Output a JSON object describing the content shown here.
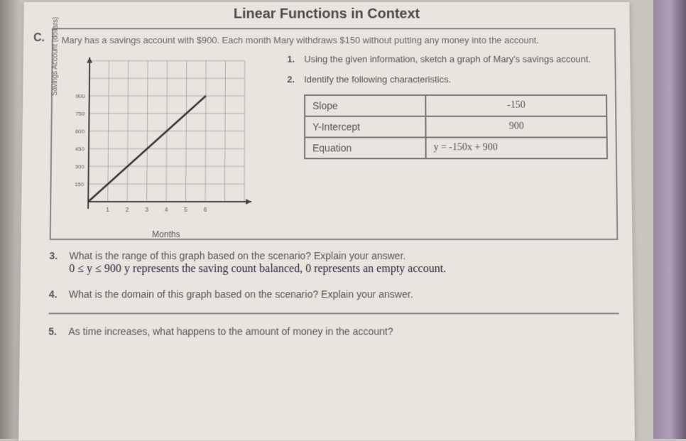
{
  "header": {
    "title": "Linear Functions in Context"
  },
  "problem": {
    "letter": "C.",
    "prompt": "Mary has a savings account with $900. Each month Mary withdraws $150 without putting any money into the account.",
    "sub1": {
      "num": "1.",
      "text": "Using the given information, sketch a graph of Mary's savings account."
    },
    "sub2": {
      "num": "2.",
      "text": "Identify the following characteristics."
    }
  },
  "graph": {
    "y_label": "Savings Account (dollars)",
    "x_label": "Months",
    "grid_color": "#999",
    "axis_color": "#444",
    "line_color": "#333",
    "cols": 8,
    "rows": 8,
    "x_ticks": [
      "",
      "1",
      "2",
      "3",
      "4",
      "5",
      "6"
    ],
    "y_ticks": [
      "",
      "150",
      "300",
      "450",
      "600",
      "750",
      "900"
    ],
    "line": {
      "x1": 0,
      "y1": 0,
      "x2": 6,
      "y2": 6
    }
  },
  "table": {
    "rows": [
      {
        "label": "Slope",
        "value": "-150"
      },
      {
        "label": "Y-Intercept",
        "value": "900"
      },
      {
        "label": "Equation",
        "value": "y = -150x + 900"
      }
    ]
  },
  "questions": {
    "q3": {
      "num": "3.",
      "text": "What is the range of this graph based on the scenario?  Explain your answer.",
      "hand": "0 ≤ y ≤ 900  y represents the saving count balanced, 0 represents an empty account."
    },
    "q4": {
      "num": "4.",
      "text": "What is the domain of this graph based on the scenario?  Explain your answer."
    },
    "q5": {
      "num": "5.",
      "text": "As time increases, what happens to the amount of money in the account?"
    }
  }
}
